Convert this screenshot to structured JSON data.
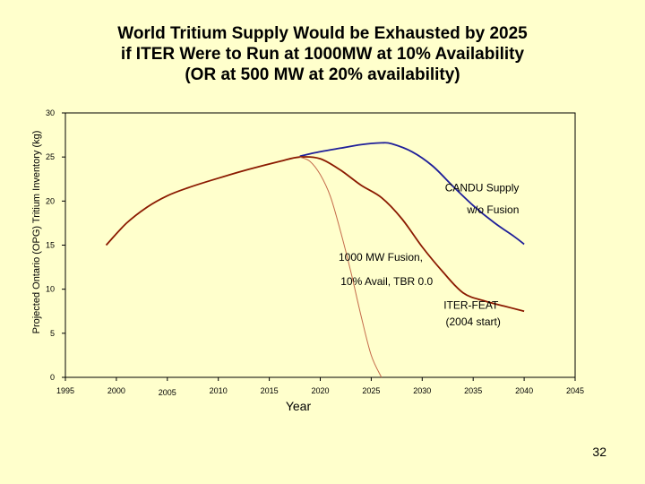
{
  "slide": {
    "title_line1": "World Tritium Supply Would be Exhausted by 2025",
    "title_line2": "if ITER Were to Run at 1000MW at 10% Availability",
    "title_line3": "(OR at 500 MW at 20% availability)",
    "page_number": "32"
  },
  "chart_data": {
    "type": "line",
    "title": "World Tritium Supply Would be Exhausted by 2025 if ITER Were to Run at 1000MW at 10% Availability (OR at 500 MW at 20% availability)",
    "xlabel": "Year",
    "ylabel": "Projected Ontario (OPG) Tritium Inventory (kg)",
    "xlim": [
      1995,
      2045
    ],
    "ylim": [
      0,
      30
    ],
    "x_ticks": [
      "1995",
      "2000",
      "2005",
      "2010",
      "2015",
      "2020",
      "2025",
      "2030",
      "2035",
      "2040",
      "2045"
    ],
    "y_ticks": [
      "0",
      "5",
      "10",
      "15",
      "20",
      "25",
      "30"
    ],
    "grid": false,
    "series": [
      {
        "name": "CANDU Supply w/o Fusion",
        "color": "#1f1f99",
        "x": [
          2018,
          2020,
          2022,
          2024,
          2026,
          2027,
          2029,
          2031,
          2033,
          2035,
          2037,
          2039,
          2040
        ],
        "y": [
          25.1,
          25.6,
          26.0,
          26.4,
          26.6,
          26.5,
          25.6,
          24.0,
          21.7,
          19.5,
          17.6,
          16.0,
          15.1
        ]
      },
      {
        "name": "ITER-FEAT (2004 start)",
        "color": "#8b1a00",
        "x": [
          1999,
          2001,
          2003,
          2005,
          2007,
          2010,
          2013,
          2016,
          2018,
          2020,
          2022,
          2024,
          2026,
          2028,
          2030,
          2032,
          2034,
          2036,
          2038,
          2040
        ],
        "y": [
          15.0,
          17.5,
          19.3,
          20.6,
          21.5,
          22.6,
          23.6,
          24.5,
          25.0,
          24.8,
          23.5,
          21.8,
          20.4,
          18.0,
          14.8,
          12.0,
          9.6,
          8.7,
          8.1,
          7.5
        ]
      },
      {
        "name": "1000 MW Fusion, 10% Avail, TBR 0.0",
        "color": "#c46a4a",
        "x": [
          2018,
          2019,
          2020,
          2021,
          2022,
          2023,
          2024,
          2025,
          2026
        ],
        "y": [
          25.0,
          24.5,
          23.0,
          20.5,
          16.5,
          12.0,
          7.0,
          2.5,
          0
        ]
      }
    ],
    "annotations": [
      {
        "text": "CANDU Supply",
        "x": 2039.5,
        "y": 21.1
      },
      {
        "text": "w/o Fusion",
        "x": 2039.5,
        "y": 18.6
      },
      {
        "text": "1000 MW Fusion,",
        "x": 2021.8,
        "y": 13.2
      },
      {
        "text": "10% Avail, TBR 0.0",
        "x": 2022.0,
        "y": 10.5
      },
      {
        "text": "ITER-FEAT",
        "x": 2032.1,
        "y": 7.8
      },
      {
        "text": "(2004 start)",
        "x": 2032.3,
        "y": 5.9
      }
    ]
  }
}
